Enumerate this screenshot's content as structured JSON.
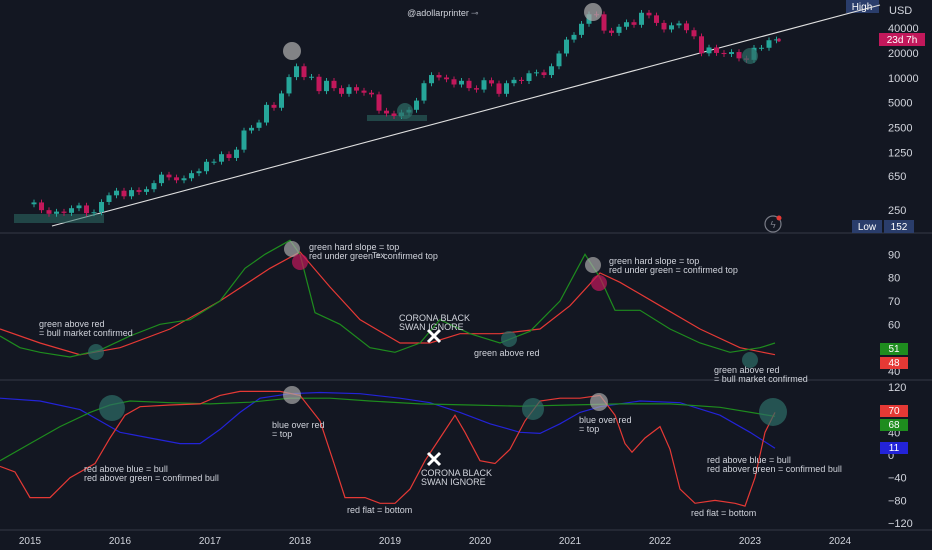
{
  "watermark": "@adollarprinter",
  "colors": {
    "background": "#131722",
    "up_candle": "#26a69a",
    "down_candle": "#c2185b",
    "text": "#d1d4dc",
    "pane_border": "#363a45",
    "green_line": "#1e8c1e",
    "red_line": "#e53935",
    "blue_line": "#2323d8",
    "marker": "#a8a8a8",
    "marker_teal": "#2e6e66"
  },
  "price_axis": {
    "unit": "USD",
    "ticks": [
      "40000",
      "20000",
      "10000",
      "5000",
      "2500",
      "1250",
      "650",
      "250"
    ],
    "high_label": "High",
    "low_label": "Low",
    "low_value": "152",
    "countdown": "23d 7h"
  },
  "x_axis": {
    "years": [
      "2015",
      "2016",
      "2017",
      "2018",
      "2019",
      "2020",
      "2021",
      "2022",
      "2023",
      "2024"
    ]
  },
  "chart_data": [
    {
      "type": "candlestick",
      "scale": "log",
      "ylim": [
        152,
        70000
      ],
      "period": "monthly",
      "close": [
        310,
        250,
        226,
        240,
        232,
        264,
        285,
        230,
        236,
        314,
        378,
        430,
        368,
        437,
        416,
        448,
        531,
        673,
        624,
        575,
        608,
        701,
        740,
        963,
        965,
        1190,
        1071,
        1349,
        2303,
        2480,
        2875,
        4703,
        4338,
        6468,
        10200,
        13800,
        10200,
        10300,
        6900,
        9200,
        7500,
        6400,
        7700,
        7000,
        6600,
        6300,
        4000,
        3700,
        3450,
        3800,
        4100,
        5300,
        8600,
        10800,
        10100,
        9600,
        8300,
        9200,
        7500,
        7200,
        9350,
        8550,
        6400,
        8600,
        9450,
        9150,
        11350,
        11650,
        10800,
        13800,
        19700,
        29000,
        33100,
        45100,
        58800,
        58700,
        37300,
        35000,
        41500,
        47100,
        43800,
        61300,
        57000,
        46200,
        38500,
        43200,
        45500,
        37700,
        31800,
        19800,
        23300,
        20000,
        19400,
        20500,
        17200,
        16500,
        23100,
        23100,
        28500,
        29200
      ],
      "highlights": {
        "top_2017": "19783",
        "top_2021": "69000",
        "bottom_2015": "152"
      }
    },
    {
      "type": "line",
      "ylim": [
        37,
        97
      ],
      "yticks": [
        90,
        80,
        70,
        60,
        50,
        40
      ],
      "series": [
        {
          "name": "green",
          "color": "#1e8c1e",
          "last": "51"
        },
        {
          "name": "red",
          "color": "#e53935",
          "last": "48"
        }
      ],
      "annotations": [
        "green above red\n= bull market confirmed",
        "green hard slope  = top\nred under green = confirmed top",
        "CORONA BLACK\nSWAN IGNORE",
        "green above red",
        "green hard slope  = top\nred under green = confirmed top",
        "green above red\n= bull market confirmed"
      ],
      "misc_label": "Tex"
    },
    {
      "type": "line",
      "ylim": [
        -125,
        125
      ],
      "yticks": [
        120,
        80,
        40,
        0,
        -40,
        -80,
        -120
      ],
      "series": [
        {
          "name": "red",
          "color": "#e53935",
          "last": "70"
        },
        {
          "name": "green",
          "color": "#1e8c1e",
          "last": "68"
        },
        {
          "name": "blue",
          "color": "#2323d8",
          "last": "11"
        }
      ],
      "annotations": [
        "red above blue = bull\nred abover green = confirmed bull",
        "blue over red\n= top",
        "red flat = bottom",
        "CORONA BLACK\nSWAN IGNORE",
        "blue over red\n= top",
        "red above blue = bull\nred abover green = confirmed bull",
        "red flat = bottom"
      ]
    }
  ]
}
